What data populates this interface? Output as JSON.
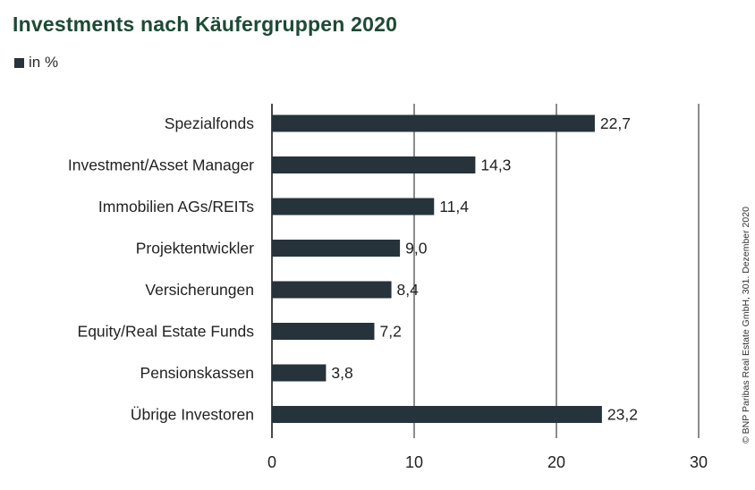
{
  "title": "Investments nach Käufergruppen 2020",
  "legend_label": "in %",
  "credit": "© BNP Paribas Real Estate GmbH, 301. Dezember 2020",
  "colors": {
    "bar": "#26333a",
    "title": "#1d4a35",
    "grid": "#1a1a1a"
  },
  "chart_data": {
    "type": "bar",
    "orientation": "horizontal",
    "categories": [
      "Spezialfonds",
      "Investment/Asset Manager",
      "Immobilien AGs/REITs",
      "Projektentwickler",
      "Versicherungen",
      "Equity/Real Estate Funds",
      "Pensionskassen",
      "Übrige Investoren"
    ],
    "values": [
      22.7,
      14.3,
      11.4,
      9.0,
      8.4,
      7.2,
      3.8,
      23.2
    ],
    "value_labels": [
      "22,7",
      "14,3",
      "11,4",
      "9,0",
      "8,4",
      "7,2",
      "3,8",
      "23,2"
    ],
    "xlim": [
      0,
      30
    ],
    "xticks": [
      0,
      10,
      20,
      30
    ],
    "grid": true,
    "title": "Investments nach Käufergruppen 2020",
    "unit": "in %"
  }
}
